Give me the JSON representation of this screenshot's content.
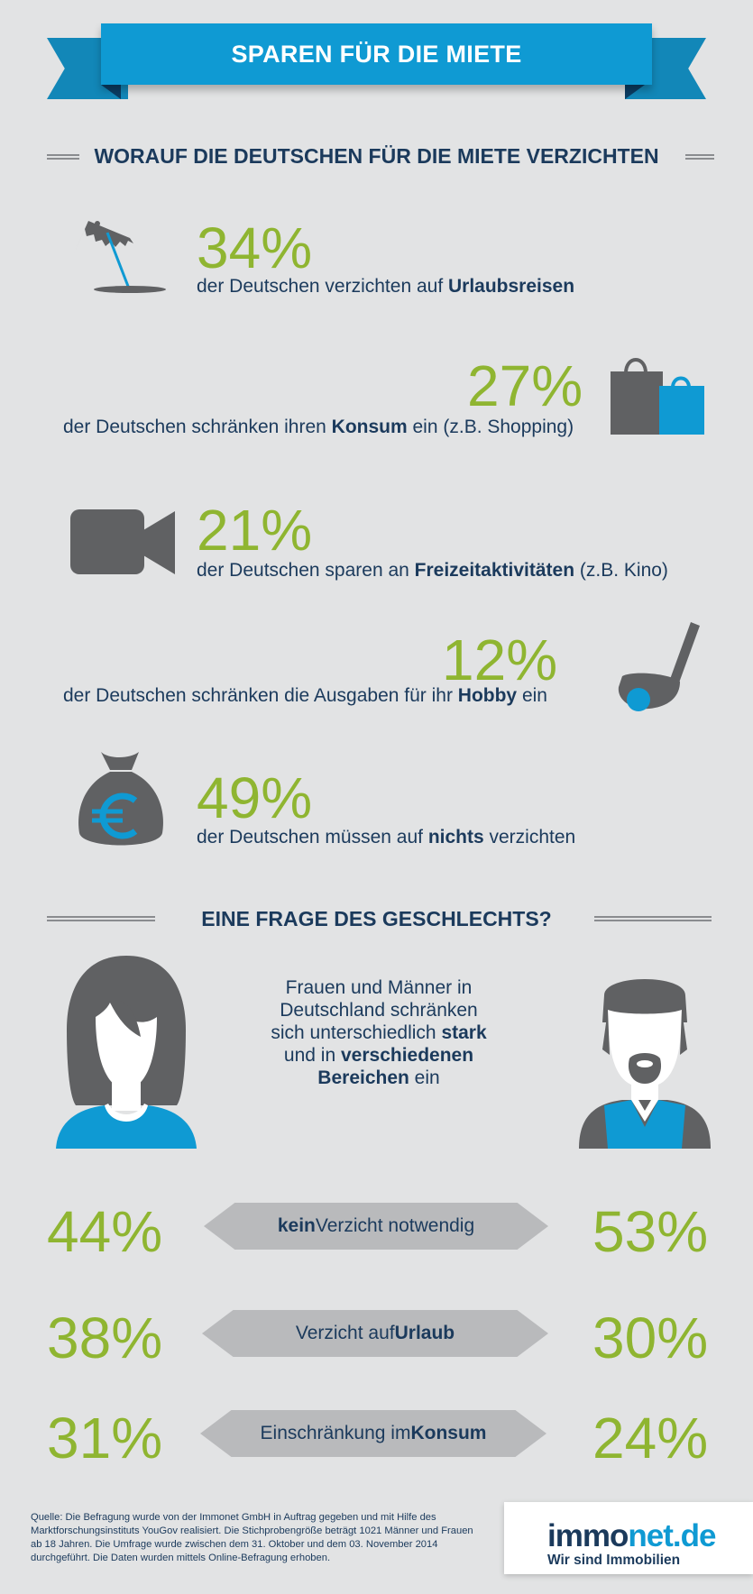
{
  "banner": {
    "title": "SPAREN FÜR DIE MIETE"
  },
  "section1": {
    "heading": "WORAUF DIE DEUTSCHEN FÜR DIE MIETE VERZICHTEN"
  },
  "items": [
    {
      "percent": "34%",
      "text_pre": "der Deutschen verzichten auf ",
      "text_bold": "Urlaubsreisen",
      "text_post": "",
      "icon": "beach-umbrella-icon"
    },
    {
      "percent": "27%",
      "text_pre": "der Deutschen schränken ihren ",
      "text_bold": "Konsum",
      "text_post": " ein (z.B. Shopping)",
      "icon": "shopping-bags-icon"
    },
    {
      "percent": "21%",
      "text_pre": "der Deutschen sparen an ",
      "text_bold": "Freizeitaktivitäten",
      "text_post": " (z.B. Kino)",
      "icon": "video-camera-icon"
    },
    {
      "percent": "12%",
      "text_pre": "der Deutschen schränken die Ausgaben für ihr ",
      "text_bold": "Hobby",
      "text_post": " ein",
      "icon": "golf-club-icon"
    },
    {
      "percent": "49%",
      "text_pre": "der Deutschen müssen auf ",
      "text_bold": "nichts",
      "text_post": " verzichten",
      "icon": "money-bag-euro-icon"
    }
  ],
  "section2": {
    "heading": "EINE FRAGE DES GESCHLECHTS?",
    "intro_1": "Frauen und Männer in Deutschland schränken sich unterschiedlich ",
    "intro_bold_1": "stark",
    "intro_2": " und in ",
    "intro_bold_2": "verschiedenen Bereichen",
    "intro_3": " ein"
  },
  "comparisons": [
    {
      "women": "44%",
      "men": "53%",
      "label_pre": "",
      "label_bold": "kein",
      "label_post": " Verzicht notwendig"
    },
    {
      "women": "38%",
      "men": "30%",
      "label_pre": "Verzicht auf ",
      "label_bold": "Urlaub",
      "label_post": ""
    },
    {
      "women": "31%",
      "men": "24%",
      "label_pre": "Einschränkung im ",
      "label_bold": "Konsum",
      "label_post": ""
    }
  ],
  "footer": {
    "source": "Quelle: Die Befragung wurde von der Immonet GmbH in Auftrag gegeben und mit Hilfe des Marktforschungsinstituts YouGov realisiert. Die Stichprobengröße beträgt 1021 Männer und Frauen ab 18 Jahren. Die Umfrage wurde zwischen dem 31. Oktober und  dem 03. November 2014 durchgeführt. Die Daten wurden mittels Online-Befragung erhoben.",
    "logo_part1": "immo",
    "logo_part2": "net.de",
    "tagline": "Wir sind Immobilien"
  },
  "colors": {
    "accent_blue": "#0f9ad3",
    "green": "#8fb531",
    "navy": "#1b3a5c",
    "icon_gray": "#606163",
    "background": "#e2e3e4"
  }
}
